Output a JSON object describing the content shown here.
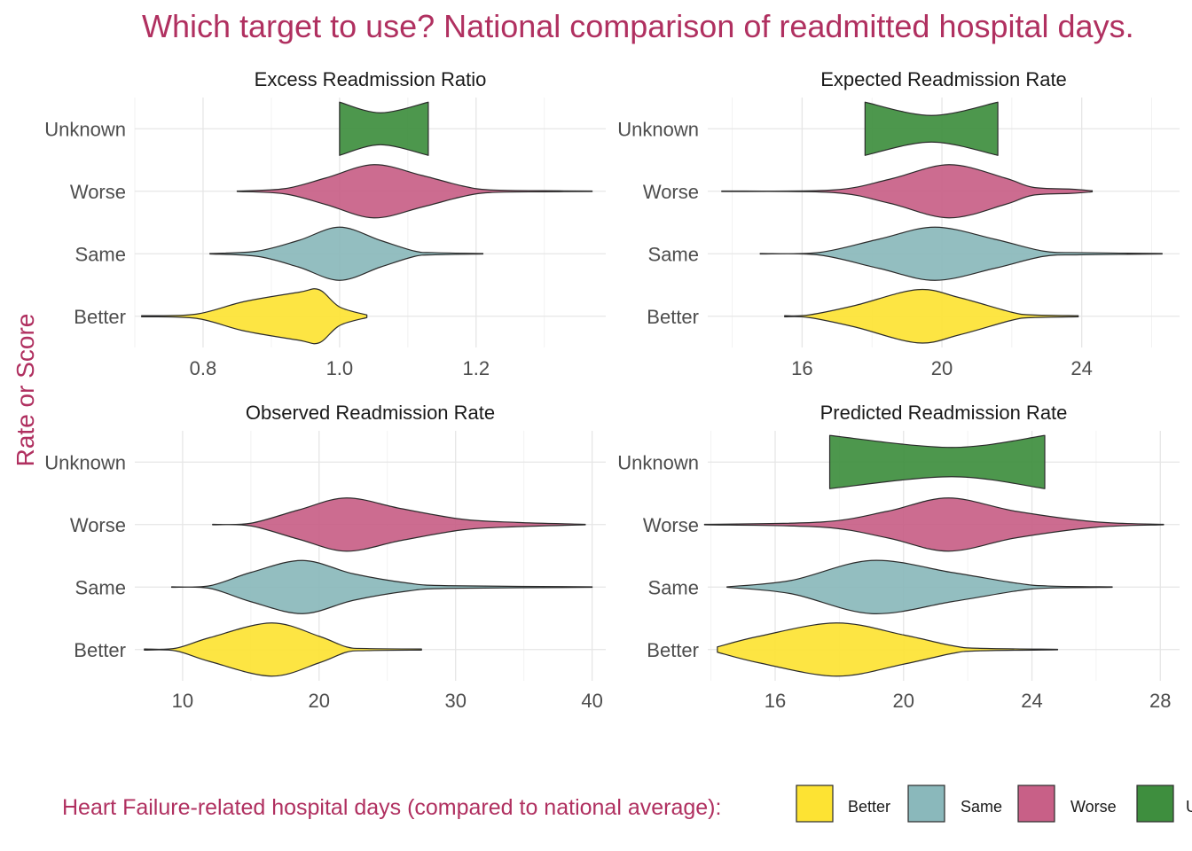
{
  "figure": {
    "title": "Which target to use? National comparison of readmitted hospital days.",
    "ylabel": "Rate or Score",
    "text_color": "#B03060"
  },
  "legend": {
    "title": "Heart Failure-related hospital days (compared to national average):",
    "position": "bottom",
    "items": [
      {
        "label": "Better",
        "color": "#FDE333"
      },
      {
        "label": "Same",
        "color": "#8AB8BB"
      },
      {
        "label": "Worse",
        "color": "#C86087"
      },
      {
        "label": "Unknown",
        "color": "#3E8E3E"
      }
    ]
  },
  "chart_data": [
    {
      "type": "violin",
      "title": "Excess Readmission Ratio",
      "categories": [
        "Better",
        "Same",
        "Worse",
        "Unknown"
      ],
      "xlim": [
        0.7,
        1.39
      ],
      "xticks": [
        0.8,
        1.0,
        1.2
      ],
      "xtick_labels": [
        "0.8",
        "1.0",
        "1.2"
      ],
      "grid": true,
      "series": [
        {
          "category": "Better",
          "min": 0.71,
          "max": 1.04,
          "x": [
            0.71,
            0.79,
            0.86,
            0.94,
            0.97,
            1.0,
            1.04
          ],
          "density": [
            0.02,
            0.08,
            0.55,
            0.9,
            1.0,
            0.35,
            0.05
          ]
        },
        {
          "category": "Same",
          "min": 0.81,
          "max": 1.21,
          "x": [
            0.81,
            0.88,
            0.94,
            1.0,
            1.06,
            1.11,
            1.14,
            1.21
          ],
          "density": [
            0.01,
            0.1,
            0.5,
            1.0,
            0.5,
            0.1,
            0.04,
            0.01
          ]
        },
        {
          "category": "Worse",
          "min": 0.85,
          "max": 1.37,
          "x": [
            0.85,
            0.92,
            0.98,
            1.05,
            1.12,
            1.18,
            1.22,
            1.3,
            1.37
          ],
          "density": [
            0.01,
            0.1,
            0.5,
            1.0,
            0.6,
            0.2,
            0.05,
            0.02,
            0.01
          ]
        },
        {
          "category": "Unknown",
          "min": 1.0,
          "max": 1.13,
          "x": [
            1.0,
            1.06,
            1.13
          ],
          "density": [
            1.0,
            0.6,
            1.0
          ]
        }
      ]
    },
    {
      "type": "violin",
      "title": "Expected Readmission Rate",
      "categories": [
        "Better",
        "Same",
        "Worse",
        "Unknown"
      ],
      "xlim": [
        13.3,
        26.8
      ],
      "xticks": [
        16,
        20,
        24
      ],
      "xtick_labels": [
        "16",
        "20",
        "24"
      ],
      "grid": true,
      "series": [
        {
          "category": "Better",
          "min": 15.5,
          "max": 23.9,
          "x": [
            15.5,
            16.2,
            17.5,
            19.3,
            20.5,
            22.0,
            22.6,
            23.9
          ],
          "density": [
            0.02,
            0.05,
            0.4,
            1.0,
            0.7,
            0.15,
            0.05,
            0.02
          ]
        },
        {
          "category": "Same",
          "min": 14.8,
          "max": 26.3,
          "x": [
            14.8,
            16.5,
            18.2,
            19.8,
            21.5,
            22.9,
            24.0,
            26.3
          ],
          "density": [
            0.01,
            0.05,
            0.55,
            1.0,
            0.55,
            0.1,
            0.04,
            0.01
          ]
        },
        {
          "category": "Worse",
          "min": 13.7,
          "max": 24.3,
          "x": [
            13.7,
            16.9,
            18.5,
            20.2,
            21.8,
            22.6,
            23.7,
            24.3
          ],
          "density": [
            0.01,
            0.05,
            0.45,
            1.0,
            0.5,
            0.15,
            0.08,
            0.02
          ]
        },
        {
          "category": "Unknown",
          "min": 17.8,
          "max": 21.6,
          "x": [
            17.8,
            19.7,
            21.6
          ],
          "density": [
            1.0,
            0.5,
            1.0
          ]
        }
      ]
    },
    {
      "type": "violin",
      "title": "Observed Readmission Rate",
      "categories": [
        "Better",
        "Same",
        "Worse",
        "Unknown"
      ],
      "xlim": [
        6.5,
        41.0
      ],
      "xticks": [
        10,
        20,
        30,
        40
      ],
      "xtick_labels": [
        "10",
        "20",
        "30",
        "40"
      ],
      "grid": true,
      "series": [
        {
          "category": "Better",
          "min": 7.2,
          "max": 27.5,
          "x": [
            7.2,
            9.5,
            12.0,
            16.5,
            20.0,
            22.0,
            23.5,
            27.5
          ],
          "density": [
            0.02,
            0.05,
            0.45,
            1.0,
            0.5,
            0.1,
            0.04,
            0.02
          ]
        },
        {
          "category": "Same",
          "min": 9.2,
          "max": 40.0,
          "x": [
            9.2,
            12.0,
            15.0,
            18.8,
            22.5,
            26.5,
            29.5,
            40.0
          ],
          "density": [
            0.01,
            0.05,
            0.55,
            1.0,
            0.5,
            0.15,
            0.05,
            0.01
          ]
        },
        {
          "category": "Worse",
          "min": 12.2,
          "max": 39.5,
          "x": [
            12.2,
            15.0,
            18.5,
            22.0,
            26.0,
            30.5,
            34.5,
            39.5
          ],
          "density": [
            0.01,
            0.05,
            0.55,
            1.0,
            0.6,
            0.2,
            0.08,
            0.01
          ]
        }
      ]
    },
    {
      "type": "violin",
      "title": "Predicted Readmission Rate",
      "categories": [
        "Better",
        "Same",
        "Worse",
        "Unknown"
      ],
      "xlim": [
        13.9,
        28.6
      ],
      "xticks": [
        16,
        20,
        24,
        28
      ],
      "xtick_labels": [
        "16",
        "20",
        "24",
        "28"
      ],
      "grid": true,
      "series": [
        {
          "category": "Better",
          "min": 14.2,
          "max": 24.8,
          "x": [
            14.2,
            15.5,
            17.9,
            20.0,
            21.5,
            22.3,
            24.8
          ],
          "density": [
            0.1,
            0.5,
            1.0,
            0.55,
            0.15,
            0.05,
            0.01
          ]
        },
        {
          "category": "Same",
          "min": 14.5,
          "max": 26.5,
          "x": [
            14.5,
            16.5,
            19.0,
            21.5,
            23.5,
            24.5,
            26.5
          ],
          "density": [
            0.01,
            0.25,
            1.0,
            0.55,
            0.15,
            0.04,
            0.01
          ]
        },
        {
          "category": "Worse",
          "min": 13.8,
          "max": 28.1,
          "x": [
            13.8,
            17.5,
            19.5,
            21.4,
            23.5,
            26.0,
            28.1
          ],
          "density": [
            0.01,
            0.1,
            0.5,
            1.0,
            0.5,
            0.1,
            0.01
          ]
        },
        {
          "category": "Unknown",
          "min": 17.7,
          "max": 24.4,
          "x": [
            17.7,
            21.5,
            24.4
          ],
          "density": [
            1.0,
            0.55,
            1.0
          ]
        }
      ]
    }
  ]
}
